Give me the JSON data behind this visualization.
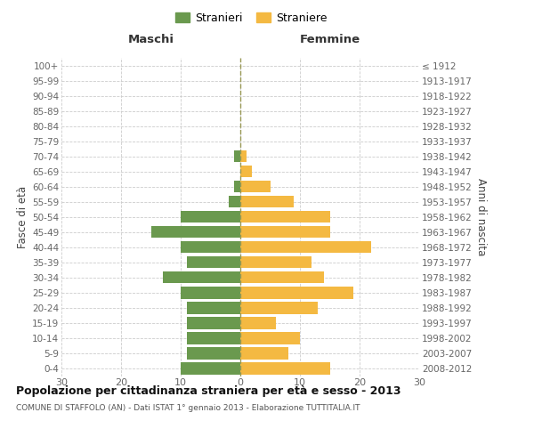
{
  "age_groups_bottom_to_top": [
    "0-4",
    "5-9",
    "10-14",
    "15-19",
    "20-24",
    "25-29",
    "30-34",
    "35-39",
    "40-44",
    "45-49",
    "50-54",
    "55-59",
    "60-64",
    "65-69",
    "70-74",
    "75-79",
    "80-84",
    "85-89",
    "90-94",
    "95-99",
    "100+"
  ],
  "birth_years_bottom_to_top": [
    "2008-2012",
    "2003-2007",
    "1998-2002",
    "1993-1997",
    "1988-1992",
    "1983-1987",
    "1978-1982",
    "1973-1977",
    "1968-1972",
    "1963-1967",
    "1958-1962",
    "1953-1957",
    "1948-1952",
    "1943-1947",
    "1938-1942",
    "1933-1937",
    "1928-1932",
    "1923-1927",
    "1918-1922",
    "1913-1917",
    "≤ 1912"
  ],
  "maschi_bottom_to_top": [
    10,
    9,
    9,
    9,
    9,
    10,
    13,
    9,
    10,
    15,
    10,
    2,
    1,
    0,
    1,
    0,
    0,
    0,
    0,
    0,
    0
  ],
  "femmine_bottom_to_top": [
    15,
    8,
    10,
    6,
    13,
    19,
    14,
    12,
    22,
    15,
    15,
    9,
    5,
    2,
    1,
    0,
    0,
    0,
    0,
    0,
    0
  ],
  "color_maschi": "#6a994e",
  "color_femmine": "#f4b942",
  "dashed_line_color": "#999955",
  "grid_color": "#cccccc",
  "title": "Popolazione per cittadinanza straniera per età e sesso - 2013",
  "subtitle": "COMUNE DI STAFFOLO (AN) - Dati ISTAT 1° gennaio 2013 - Elaborazione TUTTITALIA.IT",
  "xlabel_left": "Maschi",
  "xlabel_right": "Femmine",
  "ylabel_left": "Fasce di età",
  "ylabel_right": "Anni di nascita",
  "legend_stranieri": "Stranieri",
  "legend_straniere": "Straniere",
  "xlim": 30,
  "background_color": "#ffffff",
  "bar_height": 0.78
}
